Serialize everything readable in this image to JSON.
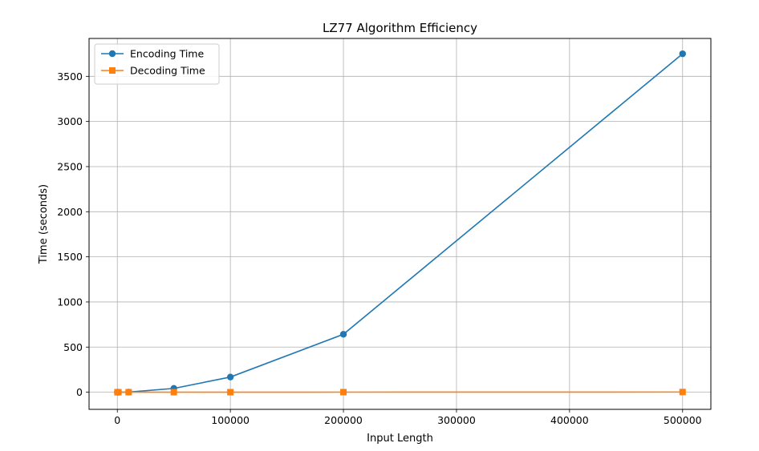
{
  "chart_data": {
    "type": "line",
    "title": "LZ77 Algorithm Efficiency",
    "xlabel": "Input Length",
    "ylabel": "Time (seconds)",
    "xlim": [
      -25000,
      525000
    ],
    "ylim": [
      -190,
      3920
    ],
    "xticks": [
      0,
      100000,
      200000,
      300000,
      400000,
      500000
    ],
    "yticks": [
      0,
      500,
      1000,
      1500,
      2000,
      2500,
      3000,
      3500
    ],
    "grid": true,
    "legend_position": "top-left",
    "series": [
      {
        "name": "Encoding Time",
        "color": "#1f77b4",
        "marker": "circle",
        "x": [
          100,
          1000,
          10000,
          50000,
          100000,
          200000,
          500000
        ],
        "y": [
          0.02,
          0.2,
          1.8,
          42,
          168,
          642,
          3750
        ]
      },
      {
        "name": "Decoding Time",
        "color": "#ff7f0e",
        "marker": "square",
        "x": [
          100,
          1000,
          10000,
          50000,
          100000,
          200000,
          500000
        ],
        "y": [
          0.001,
          0.005,
          0.05,
          0.2,
          0.4,
          0.8,
          2.0
        ]
      }
    ]
  }
}
